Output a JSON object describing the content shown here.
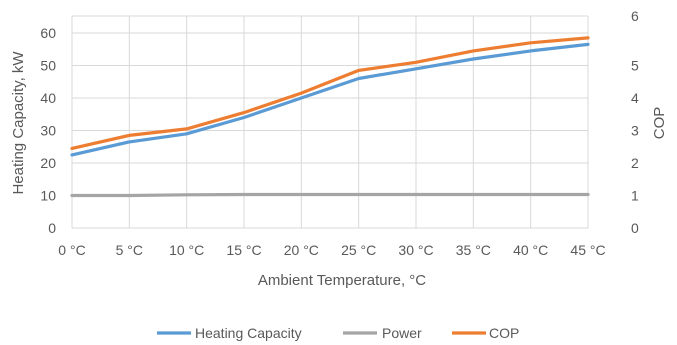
{
  "chart_data": {
    "type": "line",
    "title": "",
    "xlabel": "Ambient Temperature, °C",
    "ylabel": "Heating Capacity, kW",
    "y2label": "COP",
    "categories": [
      "0 °C",
      "5 °C",
      "10 °C",
      "15 °C",
      "20 °C",
      "25 °C",
      "30 °C",
      "35 °C",
      "40 °C",
      "45 °C"
    ],
    "ylim": [
      0,
      60
    ],
    "y2lim": [
      0,
      6
    ],
    "yticks": [
      "0",
      "10",
      "20",
      "30",
      "40",
      "50",
      "60"
    ],
    "y2ticks": [
      "0",
      "1",
      "2",
      "3",
      "4",
      "5",
      "6"
    ],
    "grid": true,
    "legend_position": "bottom",
    "series": [
      {
        "name": "Heating Capacity",
        "axis": "left",
        "color": "#5b9bd5",
        "values": [
          22.5,
          26.5,
          29,
          34,
          40,
          46,
          49,
          52,
          54.5,
          56.5
        ]
      },
      {
        "name": "Power",
        "axis": "left",
        "color": "#a5a5a5",
        "values": [
          10,
          10,
          10.2,
          10.3,
          10.3,
          10.3,
          10.3,
          10.3,
          10.3,
          10.3
        ]
      },
      {
        "name": "COP",
        "axis": "right",
        "color": "#ed7d31",
        "values": [
          2.45,
          2.85,
          3.05,
          3.55,
          4.15,
          4.85,
          5.1,
          5.45,
          5.7,
          5.85
        ]
      }
    ]
  }
}
